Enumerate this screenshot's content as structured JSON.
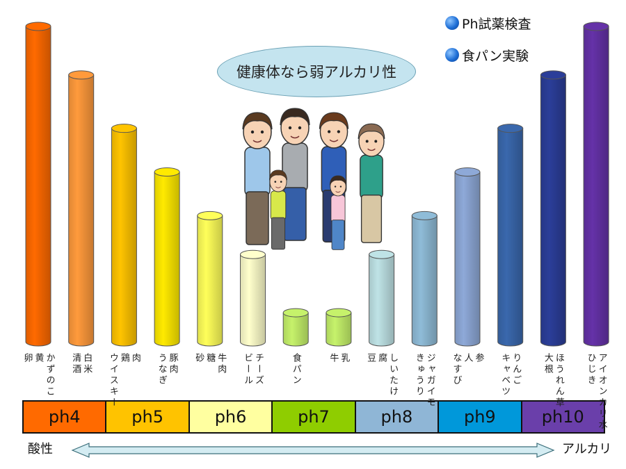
{
  "legend": {
    "items": [
      "Ph試薬検査",
      "食パン実験"
    ]
  },
  "bubble": {
    "text": "健康体なら弱アルカリ性"
  },
  "scale": {
    "segments": [
      {
        "label": "ph4",
        "color": "#ff6a00"
      },
      {
        "label": "ph5",
        "color": "#ffc300"
      },
      {
        "label": "ph6",
        "color": "#ffffa0"
      },
      {
        "label": "ph7",
        "color": "#8fcd00"
      },
      {
        "label": "ph8",
        "color": "#8fb6d6"
      },
      {
        "label": "ph9",
        "color": "#0098da"
      },
      {
        "label": "ph10",
        "color": "#6a3faa"
      }
    ]
  },
  "axis": {
    "left_label": "酸性",
    "right_label": "アルカリ",
    "arrow_color": "#d4ecf2"
  },
  "chart_data": {
    "type": "bar",
    "ylim": [
      3.5,
      10
    ],
    "bars": [
      {
        "value": 10.0,
        "color": "#ff6a00",
        "labels": [
          "卵",
          "黄",
          "かずのこ"
        ],
        "label_color": "#222222"
      },
      {
        "value": 9.0,
        "color": "#ff9a3c",
        "labels": [
          "清酒",
          "白米"
        ],
        "label_color": "#222222"
      },
      {
        "value": 7.9,
        "color": "#ffc400",
        "labels": [
          "ウイスキー",
          "鶏",
          "肉"
        ],
        "label_color": "#222222"
      },
      {
        "value": 7.0,
        "color": "#ffea00",
        "labels": [
          "うなぎ",
          "豚肉"
        ],
        "label_color": "#222222"
      },
      {
        "value": 6.1,
        "color": "#ffff5a",
        "labels": [
          "砂",
          "糖",
          "牛肉"
        ],
        "label_color": "#222222"
      },
      {
        "value": 5.3,
        "color": "#ffffcc",
        "labels": [
          "ビール",
          "チーズ"
        ],
        "label_color": "#222222"
      },
      {
        "value": 4.1,
        "color": "#c6f26b",
        "labels": [
          "食パン"
        ],
        "label_color": "#222222"
      },
      {
        "value": 4.1,
        "color": "#c6f26b",
        "labels": [
          "牛",
          "乳"
        ],
        "label_color": "#222222"
      },
      {
        "value": 5.3,
        "color": "#bfe3e6",
        "labels": [
          "豆",
          "腐",
          "しいたけ"
        ],
        "label_color": "#222222"
      },
      {
        "value": 6.1,
        "color": "#8fbcd8",
        "labels": [
          "きゅうり",
          "ジャガイモ"
        ],
        "label_color": "#222222"
      },
      {
        "value": 7.0,
        "color": "#8ea9d8",
        "labels": [
          "なすび",
          "人",
          "参"
        ],
        "label_color": "#222222"
      },
      {
        "value": 7.9,
        "color": "#3a68ad",
        "labels": [
          "キャベツ",
          "りんご"
        ],
        "label_color": "#222222"
      },
      {
        "value": 9.0,
        "color": "#2b3e99",
        "labels": [
          "大根",
          "ほうれん草"
        ],
        "label_color": "#222222"
      },
      {
        "value": 10.0,
        "color": "#6532a8",
        "labels": [
          "ひじき",
          "アイオンカリ水"
        ],
        "label_color": "#222222"
      }
    ]
  }
}
